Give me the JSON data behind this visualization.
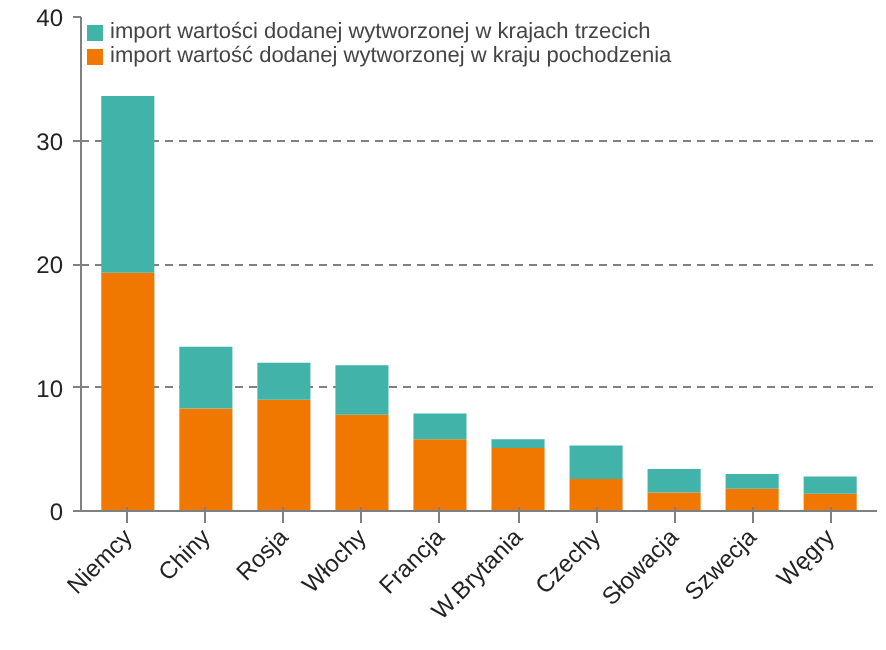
{
  "chart_data": {
    "type": "bar",
    "stacked": true,
    "categories": [
      "Niemcy",
      "Chiny",
      "Rosja",
      "Włochy",
      "Francja",
      "W.Brytania",
      "Czechy",
      "Słowacja",
      "Szwecja",
      "Węgry"
    ],
    "series": [
      {
        "name": "import wartość dodanej wytworzonej w kraju pochodzenia",
        "color": "#f07800",
        "values": [
          19.3,
          8.3,
          9.0,
          7.8,
          5.8,
          5.1,
          2.6,
          1.5,
          1.8,
          1.4
        ]
      },
      {
        "name": "import wartości dodanej wytworzonej w krajach trzecich",
        "color": "#41b3a8",
        "values": [
          14.3,
          5.0,
          3.0,
          4.0,
          2.1,
          0.7,
          2.7,
          1.9,
          1.2,
          1.4
        ]
      }
    ],
    "ylim": [
      0,
      40
    ],
    "yticks": [
      0,
      10,
      20,
      30,
      40
    ],
    "grid": "y",
    "legend": "top left"
  }
}
